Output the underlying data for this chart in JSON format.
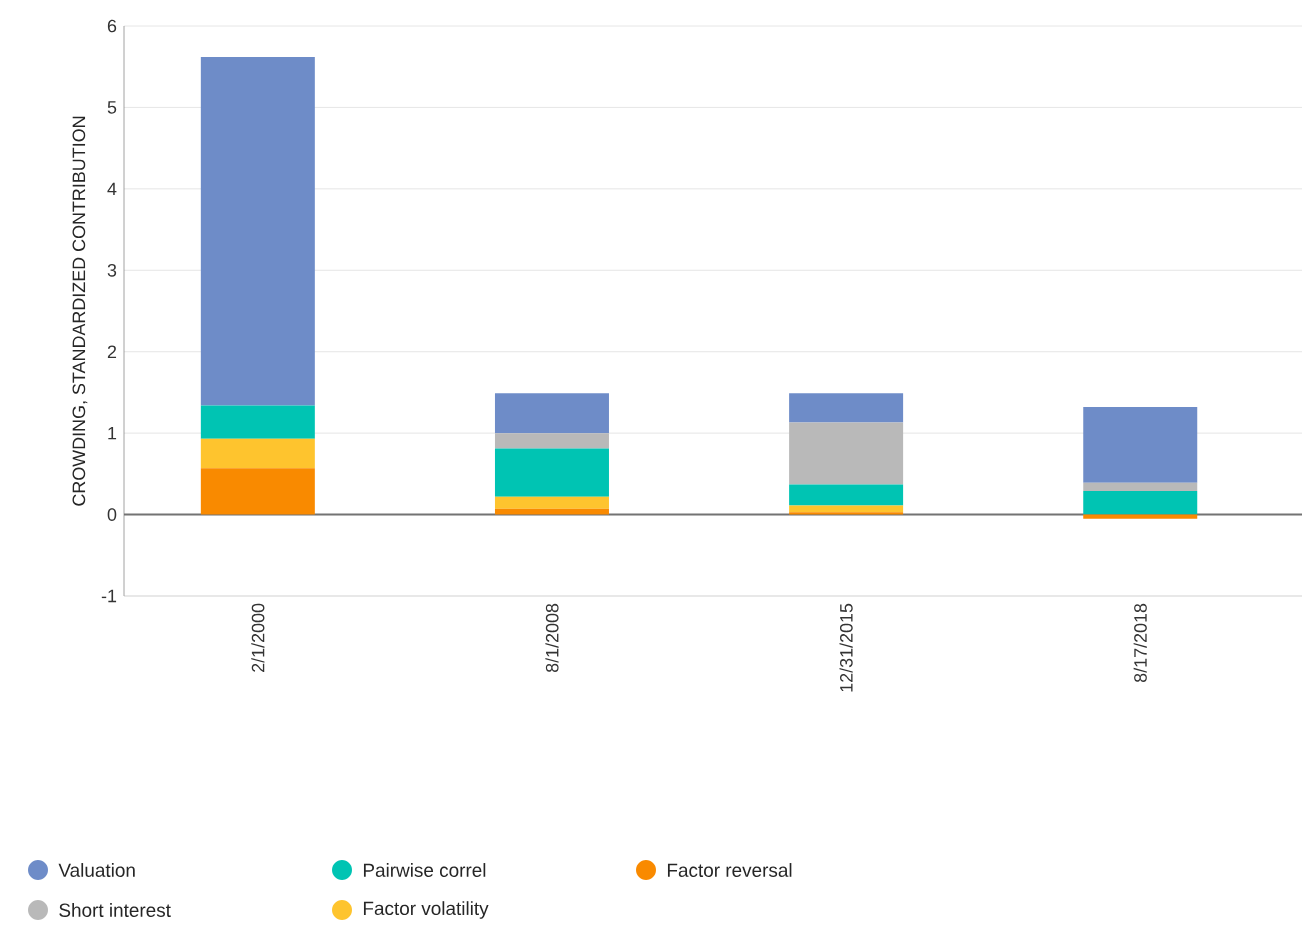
{
  "chart_data": {
    "type": "bar",
    "stacked": true,
    "ylabel": "CROWDING, STANDARDIZED CONTRIBUTION",
    "categories": [
      "2/1/2000",
      "8/1/2008",
      "12/31/2015",
      "8/17/2018"
    ],
    "series": [
      {
        "name": "Factor reversal",
        "color": "#f98a00",
        "values": [
          0.57,
          0.07,
          0.03,
          -0.05
        ]
      },
      {
        "name": "Factor volatility",
        "color": "#fec42e",
        "values": [
          0.36,
          0.15,
          0.08,
          0
        ]
      },
      {
        "name": "Pairwise correl",
        "color": "#00c4b3",
        "values": [
          0.41,
          0.59,
          0.26,
          0.29
        ]
      },
      {
        "name": "Short interest",
        "color": "#b9b9b9",
        "values": [
          0,
          0.19,
          0.76,
          0.1
        ]
      },
      {
        "name": "Valuation",
        "color": "#6e8cc8",
        "values": [
          4.28,
          0.49,
          0.36,
          0.93
        ]
      }
    ],
    "ylim": [
      -1,
      6
    ],
    "yticks": [
      -1,
      0,
      1,
      2,
      3,
      4,
      5,
      6
    ],
    "grid": "y",
    "legend": "bottom"
  }
}
